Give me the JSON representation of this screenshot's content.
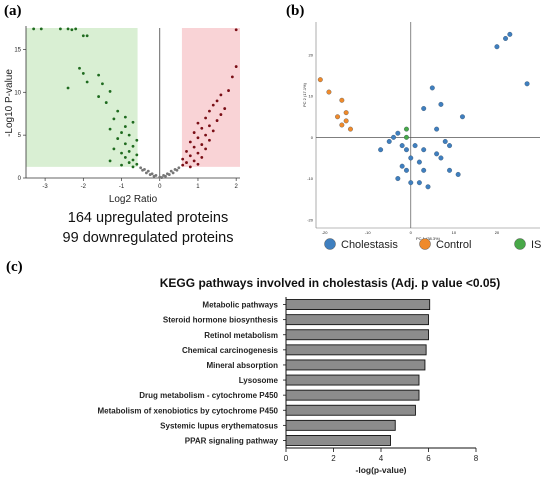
{
  "panels": {
    "a": {
      "label": "(a)"
    },
    "b": {
      "label": "(b)"
    },
    "c": {
      "label": "(c)"
    }
  },
  "volcano": {
    "xlabel": "Log2 Ratio",
    "ylabel": "-Log10 P-value",
    "summary": [
      "164 upregulated proteins",
      "99 downregulated proteins"
    ],
    "colors": {
      "down_bg": "#d9efd3",
      "up_bg": "#f9d3d6",
      "down": "#1f6b1f",
      "up": "#7a0e16",
      "ns": "#777777"
    }
  },
  "pca": {
    "xlabel": "PC 1 (38.3%)",
    "ylabel": "PC 2 (17.1%)",
    "legend": [
      {
        "name": "Cholestasis",
        "color": "#3f7fbf"
      },
      {
        "name": "Control",
        "color": "#ef8a2b"
      },
      {
        "name": "IS",
        "color": "#48a848"
      }
    ]
  },
  "chart_data": [
    {
      "type": "scatter",
      "title": "",
      "xlabel": "Log2 Ratio",
      "ylabel": "-Log10 P-value",
      "xlim": [
        -3.5,
        2.1
      ],
      "ylim": [
        0,
        17.5
      ],
      "xticks": [
        "-3",
        "-2",
        "-1",
        "0",
        "1",
        "2"
      ],
      "yticks": [
        "0",
        "5",
        "10",
        "15"
      ],
      "grid": false,
      "series": [
        {
          "name": "downregulated",
          "color": "#1f6b1f",
          "points": [
            [
              -3.3,
              17.4
            ],
            [
              -3.1,
              17.4
            ],
            [
              -2.6,
              17.4
            ],
            [
              -2.4,
              17.4
            ],
            [
              -2.3,
              17.3
            ],
            [
              -2.2,
              17.4
            ],
            [
              -2.0,
              16.6
            ],
            [
              -1.9,
              16.6
            ],
            [
              -2.1,
              12.8
            ],
            [
              -2.0,
              12.2
            ],
            [
              -1.6,
              12.0
            ],
            [
              -1.9,
              11.2
            ],
            [
              -1.5,
              11.0
            ],
            [
              -2.4,
              10.5
            ],
            [
              -1.3,
              10.1
            ],
            [
              -1.6,
              9.5
            ],
            [
              -1.4,
              8.8
            ],
            [
              -1.1,
              7.8
            ],
            [
              -0.9,
              7.1
            ],
            [
              -1.2,
              6.9
            ],
            [
              -0.7,
              6.5
            ],
            [
              -0.9,
              6.0
            ],
            [
              -1.3,
              5.7
            ],
            [
              -1.0,
              5.3
            ],
            [
              -0.8,
              5.0
            ],
            [
              -1.1,
              4.6
            ],
            [
              -0.6,
              4.4
            ],
            [
              -0.9,
              4.0
            ],
            [
              -0.7,
              3.7
            ],
            [
              -1.2,
              3.4
            ],
            [
              -0.8,
              3.1
            ],
            [
              -1.0,
              2.9
            ],
            [
              -0.6,
              2.7
            ],
            [
              -0.9,
              2.4
            ],
            [
              -0.7,
              2.1
            ],
            [
              -1.3,
              2.0
            ],
            [
              -0.8,
              1.8
            ],
            [
              -0.6,
              1.6
            ],
            [
              -1.0,
              1.5
            ],
            [
              -0.7,
              1.3
            ]
          ]
        },
        {
          "name": "upregulated",
          "color": "#7a0e16",
          "points": [
            [
              2.0,
              17.3
            ],
            [
              2.0,
              13.0
            ],
            [
              1.9,
              11.8
            ],
            [
              1.8,
              10.2
            ],
            [
              1.6,
              9.7
            ],
            [
              1.5,
              9.0
            ],
            [
              1.4,
              8.5
            ],
            [
              1.7,
              8.1
            ],
            [
              1.3,
              7.8
            ],
            [
              1.6,
              7.4
            ],
            [
              1.2,
              7.0
            ],
            [
              1.5,
              6.7
            ],
            [
              1.0,
              6.4
            ],
            [
              1.3,
              6.1
            ],
            [
              1.1,
              5.8
            ],
            [
              1.4,
              5.5
            ],
            [
              0.9,
              5.3
            ],
            [
              1.2,
              5.0
            ],
            [
              1.0,
              4.7
            ],
            [
              1.3,
              4.4
            ],
            [
              0.8,
              4.2
            ],
            [
              1.1,
              3.9
            ],
            [
              0.9,
              3.6
            ],
            [
              1.2,
              3.4
            ],
            [
              0.7,
              3.1
            ],
            [
              1.0,
              2.9
            ],
            [
              0.8,
              2.6
            ],
            [
              1.1,
              2.4
            ],
            [
              0.6,
              2.2
            ],
            [
              0.9,
              2.0
            ],
            [
              0.7,
              1.8
            ],
            [
              1.0,
              1.6
            ],
            [
              0.6,
              1.5
            ],
            [
              0.8,
              1.3
            ]
          ]
        },
        {
          "name": "not significant",
          "color": "#777777",
          "points": [
            [
              -0.5,
              1.2
            ],
            [
              -0.4,
              1.0
            ],
            [
              -0.3,
              0.8
            ],
            [
              -0.2,
              0.5
            ],
            [
              -0.1,
              0.3
            ],
            [
              0.0,
              0.1
            ],
            [
              0.1,
              0.3
            ],
            [
              0.2,
              0.5
            ],
            [
              0.3,
              0.8
            ],
            [
              0.4,
              1.0
            ],
            [
              0.5,
              1.2
            ],
            [
              -0.35,
              0.6
            ],
            [
              0.35,
              0.6
            ],
            [
              -0.15,
              0.2
            ],
            [
              0.15,
              0.2
            ],
            [
              -0.45,
              0.9
            ],
            [
              0.45,
              0.9
            ],
            [
              -0.25,
              0.4
            ],
            [
              0.25,
              0.4
            ],
            [
              0.05,
              0.05
            ]
          ]
        }
      ]
    },
    {
      "type": "scatter",
      "title": "",
      "xlabel": "PC 1 (38.3%)",
      "ylabel": "PC 2 (17.1%)",
      "xlim": [
        -22,
        30
      ],
      "ylim": [
        -22,
        28
      ],
      "xticks": [
        "-20",
        "-10",
        "0",
        "10",
        "20"
      ],
      "yticks": [
        "-20",
        "-10",
        "0",
        "10",
        "20"
      ],
      "legend_position": "bottom",
      "series": [
        {
          "name": "Cholestasis",
          "color": "#3f7fbf",
          "points": [
            [
              -7,
              -3
            ],
            [
              -5,
              -1
            ],
            [
              -4,
              0
            ],
            [
              -3,
              1
            ],
            [
              -2,
              -2
            ],
            [
              -1,
              -3
            ],
            [
              0,
              -5
            ],
            [
              1,
              -2
            ],
            [
              2,
              -6
            ],
            [
              3,
              -8
            ],
            [
              -1,
              -8
            ],
            [
              -3,
              -10
            ],
            [
              -2,
              -7
            ],
            [
              0,
              -11
            ],
            [
              2,
              -11
            ],
            [
              3,
              -3
            ],
            [
              4,
              -12
            ],
            [
              6,
              -4
            ],
            [
              7,
              -5
            ],
            [
              8,
              -1
            ],
            [
              9,
              -2
            ],
            [
              9,
              -8
            ],
            [
              11,
              -9
            ],
            [
              6,
              2
            ],
            [
              5,
              12
            ],
            [
              3,
              7
            ],
            [
              7,
              8
            ],
            [
              12,
              5
            ],
            [
              22,
              24
            ],
            [
              23,
              25
            ],
            [
              27,
              13
            ],
            [
              20,
              22
            ]
          ]
        },
        {
          "name": "Control",
          "color": "#ef8a2b",
          "points": [
            [
              -21,
              14
            ],
            [
              -19,
              11
            ],
            [
              -17,
              5
            ],
            [
              -16,
              9
            ],
            [
              -15,
              6
            ],
            [
              -16,
              3
            ],
            [
              -15,
              4
            ],
            [
              -14,
              2
            ]
          ]
        },
        {
          "name": "IS",
          "color": "#48a848",
          "points": [
            [
              -1,
              0
            ],
            [
              -1,
              2
            ]
          ]
        }
      ]
    },
    {
      "type": "bar",
      "orientation": "horizontal",
      "title": "KEGG pathways involved in cholestasis (Adj. p value <0.05)",
      "xlabel": "-log(p-value)",
      "ylabel": "",
      "xlim": [
        0,
        8
      ],
      "xticks": [
        "0",
        "2",
        "4",
        "6",
        "8"
      ],
      "color": "#8c8c8c",
      "categories": [
        "Metabolic pathways",
        "Steroid hormone biosynthesis",
        "Retinol metabolism",
        "Chemical carcinogenesis",
        "Mineral absorption",
        "Lysosome",
        "Drug metabolism - cytochrome P450",
        "Metabolism of xenobiotics by cytochrome P450",
        "Systemic lupus erythematosus",
        "PPAR signaling pathway"
      ],
      "values": [
        6.05,
        6.0,
        6.0,
        5.9,
        5.85,
        5.6,
        5.6,
        5.45,
        4.6,
        4.4
      ]
    }
  ]
}
